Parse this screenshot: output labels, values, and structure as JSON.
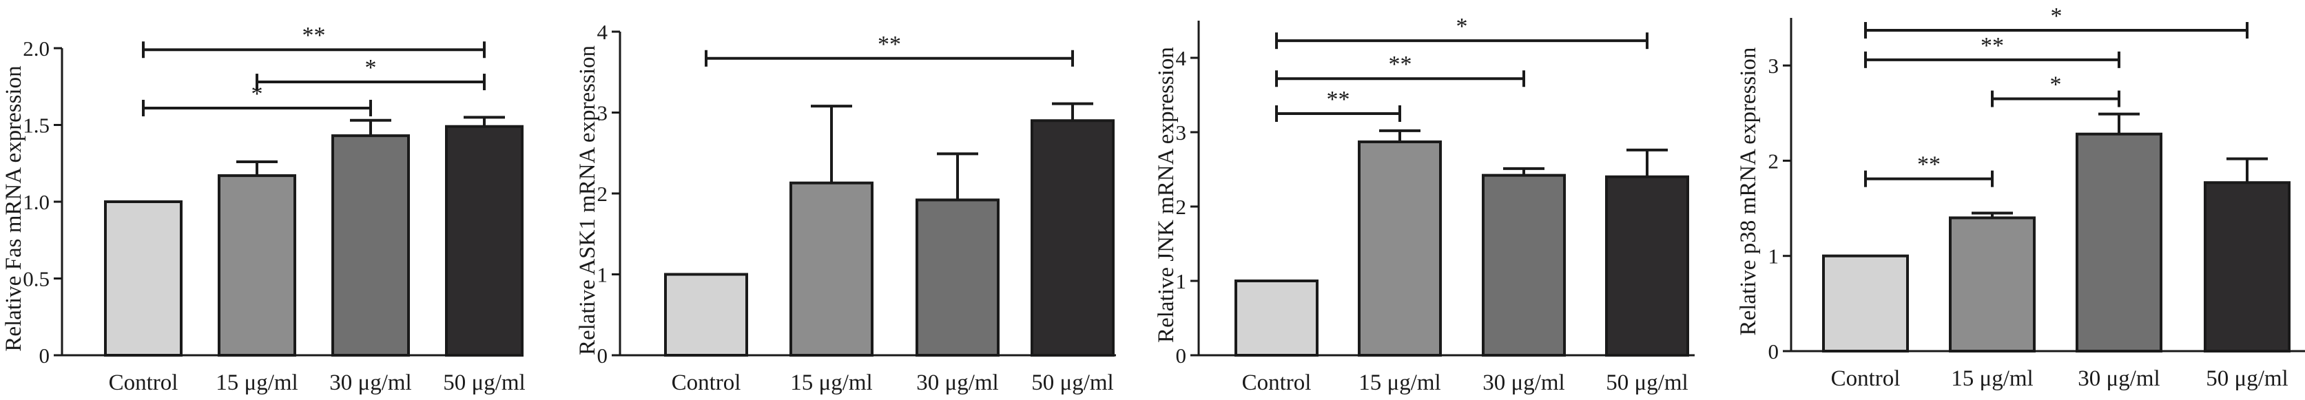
{
  "chart_data": [
    {
      "type": "bar",
      "title": "",
      "xlabel": "",
      "ylabel": "Relative Fas mRNA expression",
      "categories": [
        "Control",
        "15 μg/ml",
        "30 μg/ml",
        "50 μg/ml"
      ],
      "values": [
        1.0,
        1.17,
        1.43,
        1.49
      ],
      "errors": [
        0,
        0.09,
        0.1,
        0.06
      ],
      "ylim": [
        0,
        2.0
      ],
      "yticks": [
        "0",
        "0.5",
        "1.0",
        "1.5",
        "2.0"
      ],
      "significance": [
        {
          "from": 0,
          "to": 3,
          "label": "**",
          "y": 1.99
        },
        {
          "from": 1,
          "to": 3,
          "label": "*",
          "y": 1.78
        },
        {
          "from": 0,
          "to": 2,
          "label": "*",
          "y": 1.61
        }
      ]
    },
    {
      "type": "bar",
      "title": "",
      "xlabel": "",
      "ylabel": "Relative ASK1 mRNA expression",
      "categories": [
        "Control",
        "15 μg/ml",
        "30 μg/ml",
        "50 μg/ml"
      ],
      "values": [
        1.0,
        2.13,
        1.92,
        2.9
      ],
      "errors": [
        0,
        0.95,
        0.57,
        0.21
      ],
      "ylim": [
        0,
        4
      ],
      "yticks": [
        "0",
        "1",
        "2",
        "3",
        "4"
      ],
      "significance": [
        {
          "from": 0,
          "to": 3,
          "label": "**",
          "y": 3.67
        }
      ]
    },
    {
      "type": "bar",
      "title": "",
      "xlabel": "",
      "ylabel": "Relative JNK mRNA expression",
      "categories": [
        "Control",
        "15 μg/ml",
        "30 μg/ml",
        "50 μg/ml"
      ],
      "values": [
        1.0,
        2.87,
        2.42,
        2.4
      ],
      "errors": [
        0,
        0.15,
        0.09,
        0.36
      ],
      "ylim": [
        0,
        4.5
      ],
      "yticks": [
        "0",
        "1",
        "2",
        "3",
        "4"
      ],
      "significance": [
        {
          "from": 0,
          "to": 3,
          "label": "*",
          "y": 4.23
        },
        {
          "from": 0,
          "to": 2,
          "label": "**",
          "y": 3.72
        },
        {
          "from": 0,
          "to": 1,
          "label": "**",
          "y": 3.25
        }
      ]
    },
    {
      "type": "bar",
      "title": "",
      "xlabel": "",
      "ylabel": "Relative p38 mRNA expression",
      "categories": [
        "Control",
        "15 μg/ml",
        "30 μg/ml",
        "50 μg/ml"
      ],
      "values": [
        1.0,
        1.4,
        2.28,
        1.77
      ],
      "errors": [
        0,
        0.05,
        0.21,
        0.25
      ],
      "ylim": [
        0,
        3.5
      ],
      "yticks": [
        "0",
        "1",
        "2",
        "3"
      ],
      "significance": [
        {
          "from": 0,
          "to": 3,
          "label": "*",
          "y": 3.37
        },
        {
          "from": 0,
          "to": 2,
          "label": "**",
          "y": 3.06
        },
        {
          "from": 1,
          "to": 2,
          "label": "*",
          "y": 2.65
        },
        {
          "from": 0,
          "to": 1,
          "label": "**",
          "y": 1.81
        }
      ]
    }
  ],
  "colors": {
    "bars": [
      "#d3d3d3",
      "#8d8d8d",
      "#707070",
      "#2e2c2d"
    ],
    "stroke": "#1a1a1a"
  }
}
